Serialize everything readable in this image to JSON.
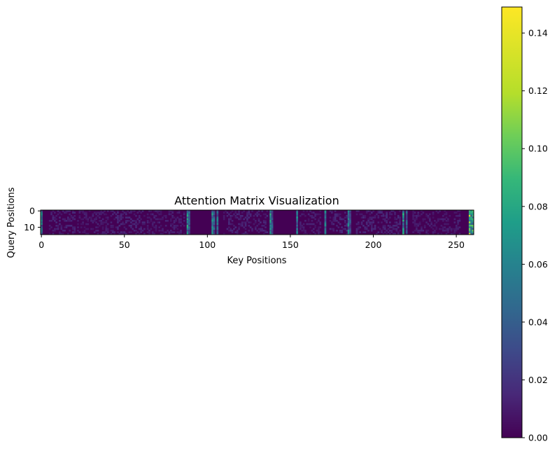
{
  "chart_data": {
    "type": "heatmap",
    "title": "Attention Matrix Visualization",
    "xlabel": "Key Positions",
    "ylabel": "Query Positions",
    "colormap": "viridis",
    "rows": 15,
    "cols": 261,
    "x_ticks": [
      0,
      50,
      100,
      150,
      200,
      250
    ],
    "y_ticks": [
      0,
      10
    ],
    "colorbar": {
      "range": [
        0.0,
        0.149
      ],
      "ticks": [
        "0.00",
        "0.02",
        "0.04",
        "0.06",
        "0.08",
        "0.10",
        "0.12",
        "0.14"
      ],
      "tick_values": [
        0.0,
        0.02,
        0.04,
        0.06,
        0.08,
        0.1,
        0.12,
        0.14
      ]
    },
    "background_value": 0.0,
    "hotspots": [
      {
        "col": 0,
        "value": 0.07
      },
      {
        "col": 88,
        "value": 0.08
      },
      {
        "col": 89,
        "value": 0.05
      },
      {
        "col": 103,
        "value": 0.075
      },
      {
        "col": 104,
        "value": 0.05
      },
      {
        "col": 106,
        "value": 0.06
      },
      {
        "col": 138,
        "value": 0.08
      },
      {
        "col": 139,
        "value": 0.05
      },
      {
        "col": 154,
        "value": 0.07
      },
      {
        "col": 171,
        "value": 0.07
      },
      {
        "col": 185,
        "value": 0.065
      },
      {
        "col": 186,
        "value": 0.04
      },
      {
        "col": 218,
        "value": 0.08
      },
      {
        "col": 220,
        "value": 0.05
      },
      {
        "col": 258,
        "value": 0.13
      },
      {
        "col": 259,
        "value": 0.09
      },
      {
        "col": 260,
        "value": 0.11
      }
    ],
    "low_activity_bands": [
      {
        "col_start": 5,
        "col_end": 20,
        "value": 0.012
      },
      {
        "col_start": 22,
        "col_end": 40,
        "value": 0.01
      },
      {
        "col_start": 42,
        "col_end": 62,
        "value": 0.012
      },
      {
        "col_start": 64,
        "col_end": 86,
        "value": 0.01
      },
      {
        "col_start": 110,
        "col_end": 136,
        "value": 0.012
      },
      {
        "col_start": 156,
        "col_end": 168,
        "value": 0.01
      },
      {
        "col_start": 174,
        "col_end": 184,
        "value": 0.012
      },
      {
        "col_start": 190,
        "col_end": 216,
        "value": 0.012
      },
      {
        "col_start": 224,
        "col_end": 252,
        "value": 0.01
      }
    ]
  }
}
